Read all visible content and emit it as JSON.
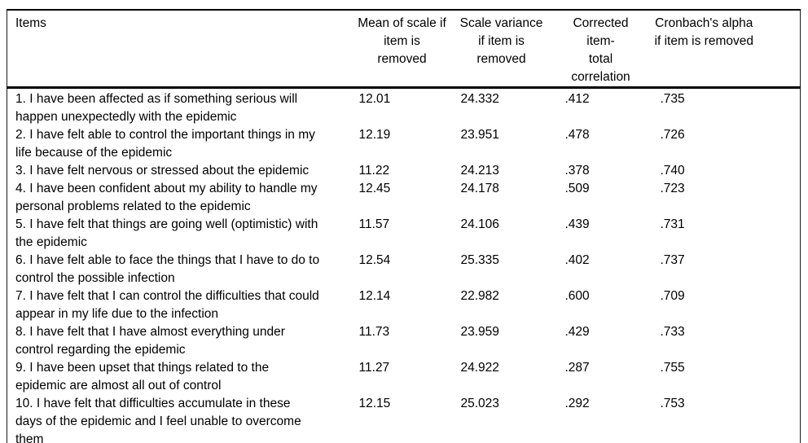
{
  "table": {
    "headers": {
      "items": "Items",
      "mean": "Mean of scale if\nitem is\nremoved",
      "variance": "Scale variance\nif item is\nremoved",
      "correlation": "Corrected item-\ntotal\ncorrelation",
      "alpha": "Cronbach's alpha\nif item is removed"
    },
    "rows": [
      {
        "item": "1. I have been affected as if something serious will\nhappen unexpectedly with the epidemic",
        "mean": "12.01",
        "variance": "24.332",
        "correlation": ".412",
        "alpha": ".735"
      },
      {
        "item": "2. I have felt able to control the important things in my\nlife because of the epidemic",
        "mean": "12.19",
        "variance": "23.951",
        "correlation": ".478",
        "alpha": ".726"
      },
      {
        "item": "3. I have felt nervous or stressed about the epidemic",
        "mean": "11.22",
        "variance": "24.213",
        "correlation": ".378",
        "alpha": ".740"
      },
      {
        "item": "4. I have been confident about my ability to handle my\npersonal problems related to the epidemic",
        "mean": "12.45",
        "variance": "24.178",
        "correlation": ".509",
        "alpha": ".723"
      },
      {
        "item": "5. I have felt that things are going well (optimistic) with\nthe epidemic",
        "mean": "11.57",
        "variance": "24.106",
        "correlation": ".439",
        "alpha": ".731"
      },
      {
        "item": "6. I have felt able to face the things that I have to do to\ncontrol the possible infection",
        "mean": "12.54",
        "variance": "25.335",
        "correlation": ".402",
        "alpha": ".737"
      },
      {
        "item": "7. I have felt that I can control the difficulties that could\nappear in my life due to the infection",
        "mean": "12.14",
        "variance": "22.982",
        "correlation": ".600",
        "alpha": ".709"
      },
      {
        "item": "8. I have felt that I have almost everything under\ncontrol regarding the epidemic",
        "mean": "11.73",
        "variance": "23.959",
        "correlation": ".429",
        "alpha": ".733"
      },
      {
        "item": "9. I have been upset that things related to the\nepidemic are almost all out of control",
        "mean": "11.27",
        "variance": "24.922",
        "correlation": ".287",
        "alpha": ".755"
      },
      {
        "item": "10. I have felt that difficulties accumulate in these\ndays of the epidemic and I feel unable to overcome\nthem",
        "mean": "12.15",
        "variance": "25.023",
        "correlation": ".292",
        "alpha": ".753"
      }
    ]
  }
}
